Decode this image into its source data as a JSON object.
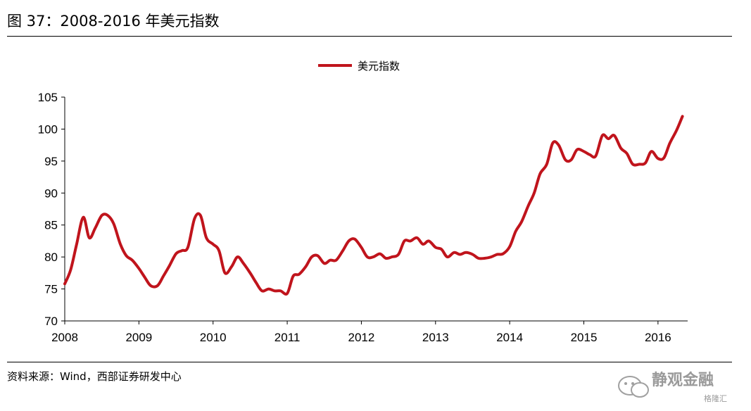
{
  "figure": {
    "title": "图 37：2008-2016 年美元指数",
    "source": "资料来源：Wind，西部证券研发中心",
    "watermark": "静观金融",
    "watermark_small": "格隆汇"
  },
  "chart_data": {
    "type": "line",
    "title": "",
    "xlabel": "",
    "ylabel": "",
    "xlim": [
      2008.0,
      2016.4
    ],
    "ylim": [
      70,
      105
    ],
    "yticks": [
      70,
      75,
      80,
      85,
      90,
      95,
      100,
      105
    ],
    "xticks": [
      2008,
      2009,
      2010,
      2011,
      2012,
      2013,
      2014,
      2015,
      2016
    ],
    "grid": false,
    "legend": "top-center",
    "color": "#c0141c",
    "series": [
      {
        "name": "美元指数",
        "x": [
          2008.0,
          2008.08,
          2008.16,
          2008.25,
          2008.33,
          2008.41,
          2008.5,
          2008.58,
          2008.66,
          2008.75,
          2008.83,
          2008.91,
          2009.0,
          2009.08,
          2009.16,
          2009.25,
          2009.33,
          2009.41,
          2009.5,
          2009.58,
          2009.66,
          2009.75,
          2009.83,
          2009.91,
          2010.0,
          2010.08,
          2010.16,
          2010.25,
          2010.33,
          2010.41,
          2010.5,
          2010.58,
          2010.66,
          2010.75,
          2010.83,
          2010.91,
          2011.0,
          2011.08,
          2011.16,
          2011.25,
          2011.33,
          2011.41,
          2011.5,
          2011.58,
          2011.66,
          2011.75,
          2011.83,
          2011.91,
          2012.0,
          2012.08,
          2012.16,
          2012.25,
          2012.33,
          2012.41,
          2012.5,
          2012.58,
          2012.66,
          2012.75,
          2012.83,
          2012.91,
          2013.0,
          2013.08,
          2013.16,
          2013.25,
          2013.33,
          2013.41,
          2013.5,
          2013.58,
          2013.66,
          2013.75,
          2013.83,
          2013.91,
          2014.0,
          2014.08,
          2014.16,
          2014.25,
          2014.33,
          2014.41,
          2014.5,
          2014.58,
          2014.66,
          2014.75,
          2014.83,
          2014.91,
          2015.0,
          2015.08,
          2015.16,
          2015.25,
          2015.33,
          2015.41,
          2015.5,
          2015.58,
          2015.66,
          2015.75,
          2015.83,
          2015.91,
          2016.0,
          2016.08,
          2016.16,
          2016.25,
          2016.33
        ],
        "values": [
          75.8,
          78,
          82,
          86.2,
          83,
          84.5,
          86.5,
          86.5,
          85.2,
          82,
          80.2,
          79.5,
          78.2,
          76.8,
          75.5,
          75.5,
          77,
          78.6,
          80.5,
          81,
          81.5,
          86,
          86.5,
          83,
          82,
          81,
          77.5,
          78.5,
          80,
          79,
          77.5,
          76,
          74.7,
          75,
          74.7,
          74.7,
          74.3,
          77,
          77.3,
          78.5,
          80,
          80.2,
          79,
          79.5,
          79.5,
          81,
          82.5,
          82.8,
          81.5,
          80,
          80,
          80.5,
          79.8,
          80,
          80.4,
          82.5,
          82.5,
          83,
          82,
          82.5,
          81.5,
          81.2,
          80,
          80.7,
          80.4,
          80.7,
          80.4,
          79.8,
          79.8,
          80,
          80.4,
          80.5,
          81.6,
          84,
          85.5,
          88,
          90,
          93,
          94.5,
          97.8,
          97.5,
          95.2,
          95.2,
          96.8,
          96.5,
          96,
          95.8,
          99,
          98.5,
          99,
          97,
          96.2,
          94.5,
          94.5,
          94.7,
          96.5,
          95.4,
          95.5,
          97.8,
          99.8,
          102
        ]
      }
    ]
  }
}
